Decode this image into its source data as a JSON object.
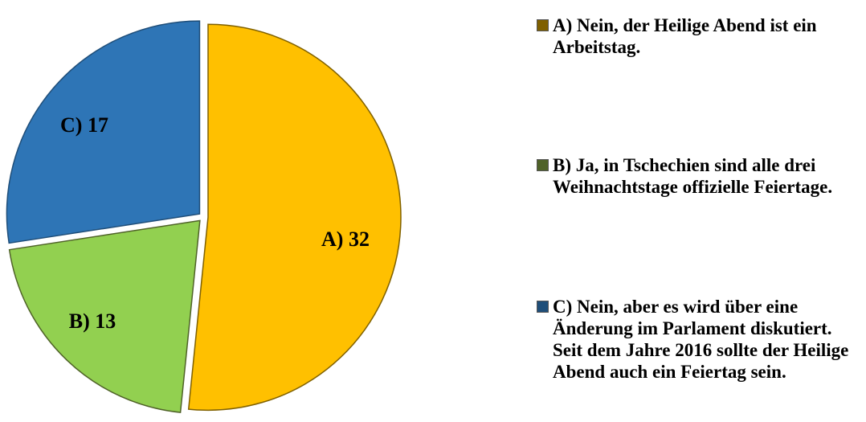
{
  "chart_data": {
    "type": "pie",
    "categories": [
      "A) Nein, der Heilige Abend ist ein Arbeitstag.",
      "B) Ja, in Tschechien sind alle drei Weihnachtstage offizielle Feiertage.",
      "C) Nein, aber es wird über eine Änderung im Parlament diskutiert. Seit dem Jahre 2016 sollte der Heilige Abend auch ein Feiertag sein."
    ],
    "values": [
      32,
      13,
      17
    ],
    "value_labels": [
      "A) 32",
      "B) 13",
      "C) 17"
    ],
    "colors": [
      "#ffc000",
      "#92d050",
      "#2e75b6"
    ],
    "legend_colors": [
      "#7f6000",
      "#4f6228",
      "#1f4e79"
    ],
    "legend": "right"
  }
}
